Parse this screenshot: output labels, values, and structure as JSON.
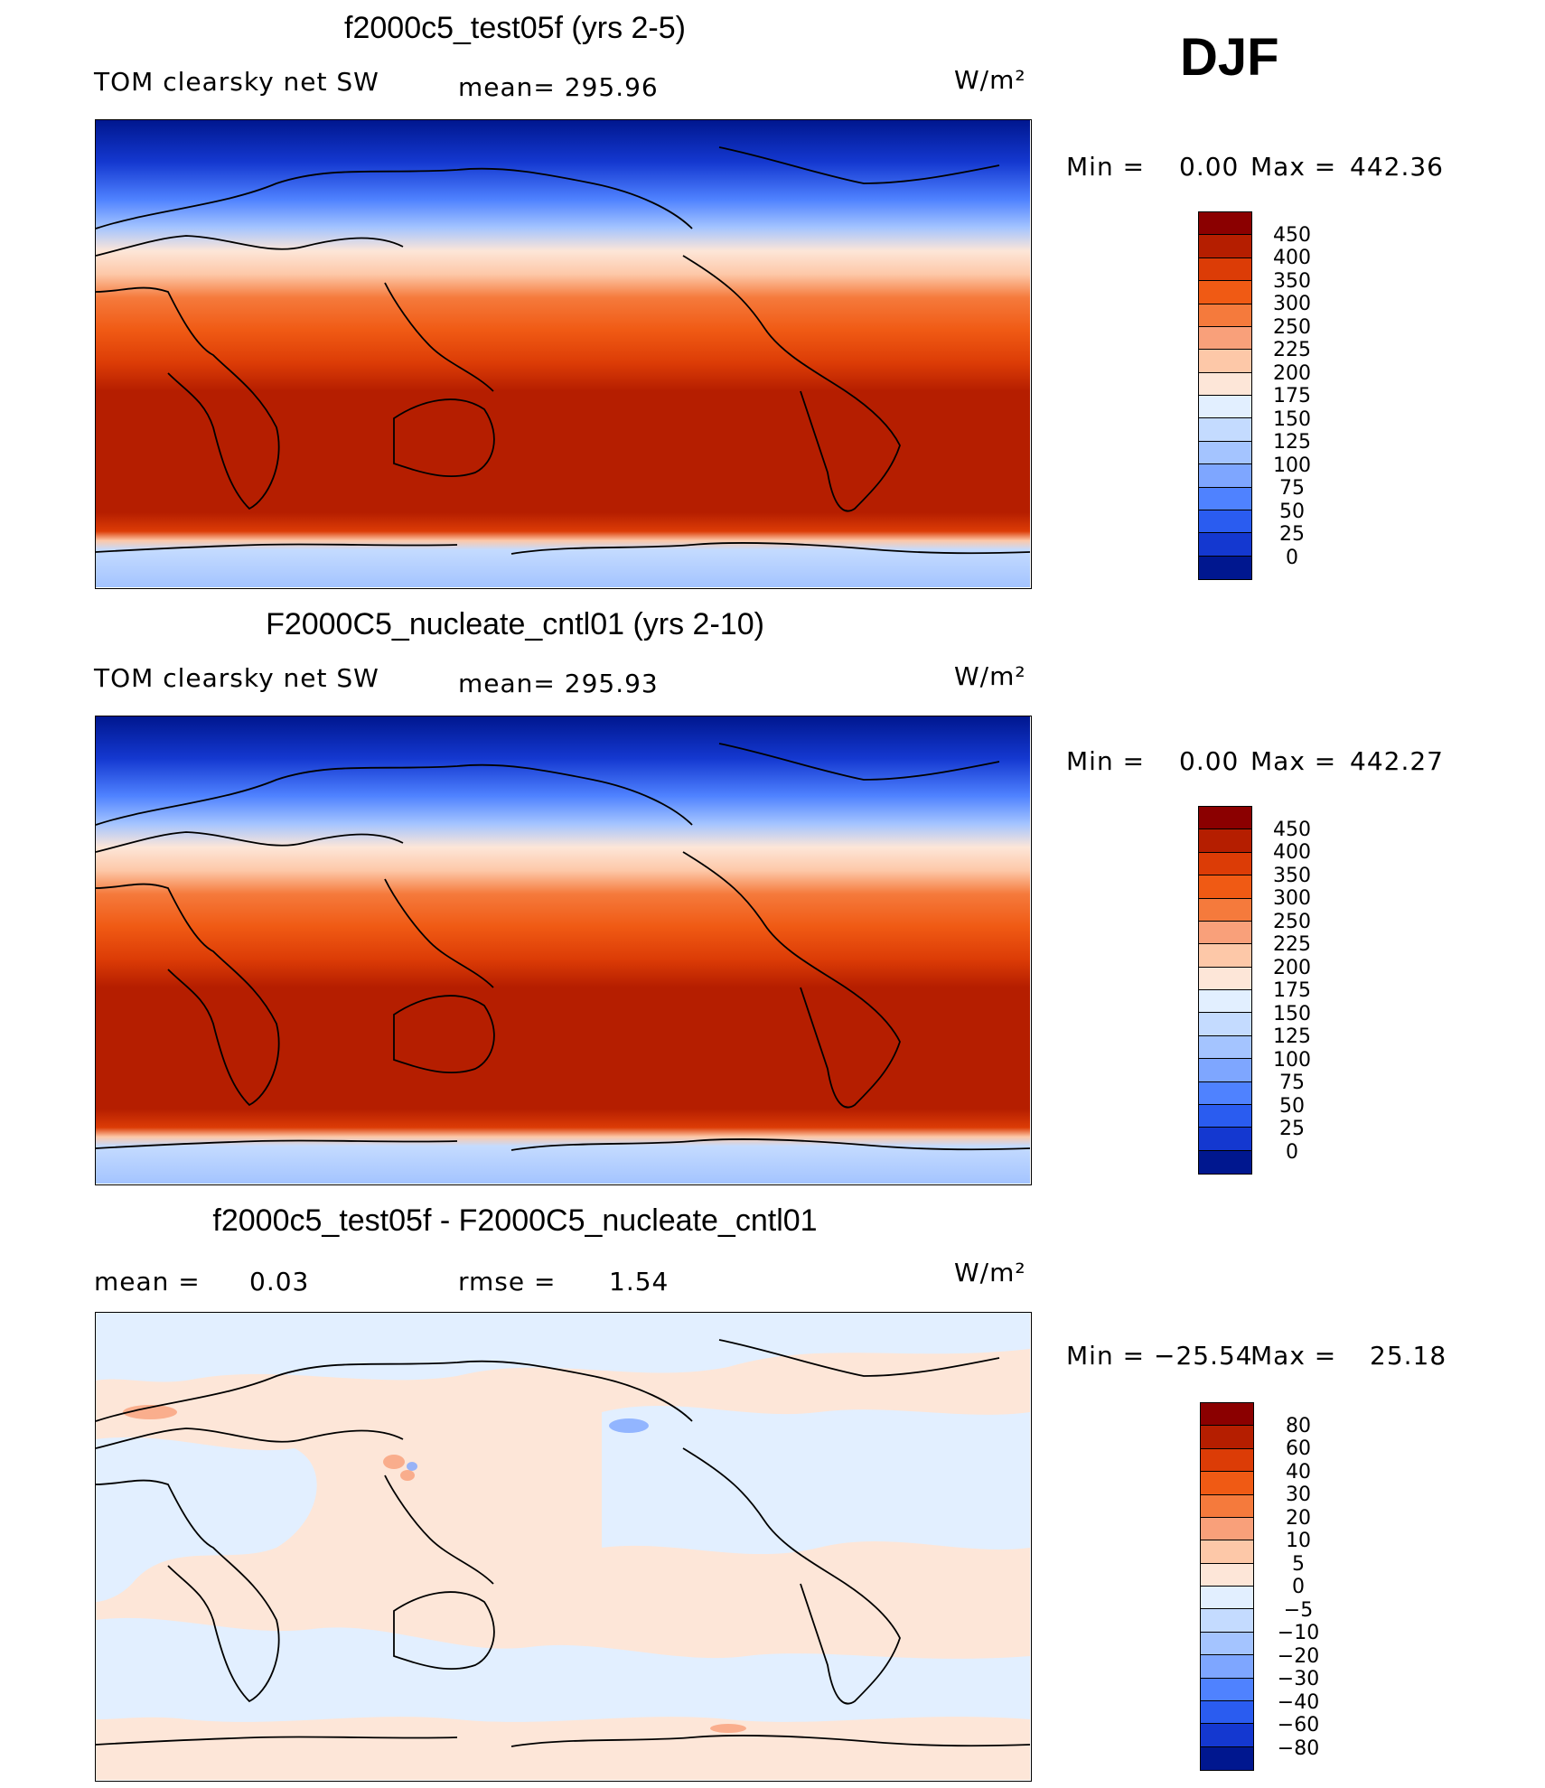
{
  "season": "DJF",
  "units": "W/m²",
  "panels": [
    {
      "title": "f2000c5_test05f (yrs 2-5)",
      "variable": "TOM clearsky net SW",
      "stat": "mean= 295.96",
      "min_label": "Min =",
      "min_value": "0.00",
      "max_label": "Max =",
      "max_value": "442.36",
      "colorbar": {
        "ticks": [
          "450",
          "400",
          "350",
          "300",
          "250",
          "225",
          "200",
          "175",
          "150",
          "125",
          "100",
          "75",
          "50",
          "25",
          "0"
        ],
        "colors": [
          "#8b0000",
          "#b51e00",
          "#dc3c06",
          "#f05a14",
          "#f57a3c",
          "#f9a07a",
          "#fdc8a8",
          "#fde6d8",
          "#e2efff",
          "#c4dbff",
          "#a4c4ff",
          "#7ea6ff",
          "#4f82ff",
          "#2a5cf0",
          "#1438d0",
          "#00178f"
        ]
      }
    },
    {
      "title": "F2000C5_nucleate_cntl01 (yrs 2-10)",
      "variable": "TOM clearsky net SW",
      "stat": "mean= 295.93",
      "min_label": "Min =",
      "min_value": "0.00",
      "max_label": "Max =",
      "max_value": "442.27",
      "colorbar": {
        "ticks": [
          "450",
          "400",
          "350",
          "300",
          "250",
          "225",
          "200",
          "175",
          "150",
          "125",
          "100",
          "75",
          "50",
          "25",
          "0"
        ],
        "colors": [
          "#8b0000",
          "#b51e00",
          "#dc3c06",
          "#f05a14",
          "#f57a3c",
          "#f9a07a",
          "#fdc8a8",
          "#fde6d8",
          "#e2efff",
          "#c4dbff",
          "#a4c4ff",
          "#7ea6ff",
          "#4f82ff",
          "#2a5cf0",
          "#1438d0",
          "#00178f"
        ]
      }
    },
    {
      "title": "f2000c5_test05f - F2000C5_nucleate_cntl01",
      "mean_label": "mean =",
      "mean_value": "0.03",
      "rmse_label": "rmse =",
      "rmse_value": "1.54",
      "min_label": "Min =",
      "min_value": "−25.54",
      "max_label": "Max =",
      "max_value": "25.18",
      "colorbar": {
        "ticks": [
          "80",
          "60",
          "40",
          "30",
          "20",
          "10",
          "5",
          "0",
          "−5",
          "−10",
          "−20",
          "−30",
          "−40",
          "−60",
          "−80"
        ],
        "colors": [
          "#8b0000",
          "#b51e00",
          "#dc3c06",
          "#f05a14",
          "#f57a3c",
          "#f9a07a",
          "#fdc8a8",
          "#fde6d8",
          "#e2efff",
          "#c4dbff",
          "#a4c4ff",
          "#7ea6ff",
          "#4f82ff",
          "#2a5cf0",
          "#1438d0",
          "#00178f"
        ]
      }
    }
  ]
}
